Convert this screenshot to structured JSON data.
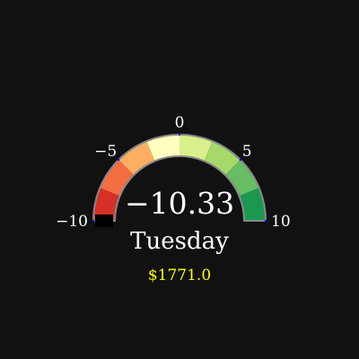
{
  "chart_data": {
    "type": "gauge",
    "value": -10.33,
    "value_label": "−10.33",
    "category_label": "Tuesday",
    "amount_label": "$1771.0",
    "range": [
      -10,
      10
    ],
    "ticks": [
      {
        "value": -10,
        "label": "−10"
      },
      {
        "value": -5,
        "label": "−5"
      },
      {
        "value": 0,
        "label": "0"
      },
      {
        "value": 5,
        "label": "5"
      },
      {
        "value": 10,
        "label": "10"
      }
    ],
    "bands": [
      {
        "from": -10,
        "to": -7.5,
        "color": "#d73027"
      },
      {
        "from": -7.5,
        "to": -5,
        "color": "#f46d43"
      },
      {
        "from": -5,
        "to": -2.5,
        "color": "#fdae61"
      },
      {
        "from": -2.5,
        "to": 0,
        "color": "#ffffbf"
      },
      {
        "from": 0,
        "to": 2.5,
        "color": "#d9ef8b"
      },
      {
        "from": 2.5,
        "to": 5,
        "color": "#a6d96a"
      },
      {
        "from": 5,
        "to": 7.5,
        "color": "#66bd63"
      },
      {
        "from": 7.5,
        "to": 10,
        "color": "#1a9850"
      }
    ],
    "colors": {
      "background": "#111111",
      "outline": "#888888",
      "needle": "#000000",
      "tick_mark": "#0000cc",
      "amount": "#ffff00"
    }
  }
}
